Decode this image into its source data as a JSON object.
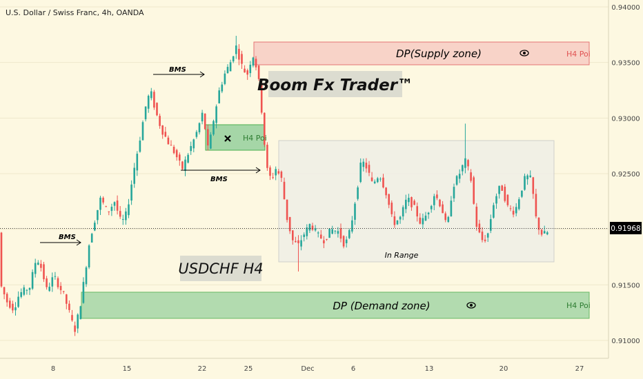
{
  "header": {
    "symbol_title": "U.S. Dollar / Swiss Franc, 4h, OANDA"
  },
  "colors": {
    "background": "#fdf8e1",
    "up_candle": "#26a69a",
    "down_candle": "#ef5350",
    "supply_fill": "#f8d3c8",
    "supply_border": "#e57373",
    "demand_fill": "#a5d6a7",
    "demand_border": "#4caf50",
    "range_fill": "#efefe6",
    "range_border": "#c8c8c8",
    "axis_text": "#444444",
    "price_tag": "#000000"
  },
  "chart_data": {
    "type": "candlestick",
    "y_axis": {
      "range": [
        0.90839,
        0.94062
      ],
      "ticks": [
        "0.94000",
        "0.93500",
        "0.93000",
        "0.92500",
        "0.92000",
        "0.91500",
        "0.91000"
      ]
    },
    "x_axis": {
      "ticks": [
        "8",
        "15",
        "22",
        "25",
        "Dec",
        "6",
        "13",
        "20",
        "27"
      ]
    },
    "current_price": "0.91968",
    "annotations": {
      "supply_zone": {
        "label": "DP(Supply zone)",
        "tag": "H4 Poi",
        "price_top": 0.93625,
        "price_bottom": 0.93435
      },
      "demand_zone": {
        "label": "DP (Demand zone)",
        "tag": "H4 Poi",
        "price_top": 0.91385,
        "price_bottom": 0.91175
      },
      "mid_poi": {
        "tag": "H4 Poi",
        "price_top": 0.92935,
        "price_bottom": 0.92665
      },
      "range_box": {
        "label": "In Range",
        "price_top": 0.92745,
        "price_bottom": 0.91685
      },
      "bms_labels": [
        "BMS",
        "BMS",
        "BMS"
      ],
      "brand": "Boom Fx Trader™",
      "title": "USDCHF H4"
    },
    "series_path": [
      [
        0,
        0.9155
      ],
      [
        12,
        0.9135
      ],
      [
        22,
        0.9128
      ],
      [
        30,
        0.9142
      ],
      [
        45,
        0.9148
      ],
      [
        55,
        0.9175
      ],
      [
        62,
        0.9165
      ],
      [
        70,
        0.9145
      ],
      [
        80,
        0.9158
      ],
      [
        95,
        0.914
      ],
      [
        105,
        0.912
      ],
      [
        110,
        0.9108
      ],
      [
        118,
        0.913
      ],
      [
        124,
        0.9155
      ],
      [
        132,
        0.919
      ],
      [
        140,
        0.921
      ],
      [
        148,
        0.9228
      ],
      [
        158,
        0.9215
      ],
      [
        168,
        0.9225
      ],
      [
        178,
        0.9205
      ],
      [
        186,
        0.9215
      ],
      [
        195,
        0.925
      ],
      [
        205,
        0.9282
      ],
      [
        213,
        0.931
      ],
      [
        220,
        0.9325
      ],
      [
        228,
        0.9305
      ],
      [
        236,
        0.929
      ],
      [
        246,
        0.9278
      ],
      [
        256,
        0.9268
      ],
      [
        266,
        0.9254
      ],
      [
        276,
        0.927
      ],
      [
        286,
        0.9285
      ],
      [
        296,
        0.9305
      ],
      [
        304,
        0.927
      ],
      [
        312,
        0.93
      ],
      [
        320,
        0.9325
      ],
      [
        328,
        0.934
      ],
      [
        336,
        0.935
      ],
      [
        344,
        0.9365
      ],
      [
        352,
        0.9348
      ],
      [
        360,
        0.9338
      ],
      [
        368,
        0.9358
      ],
      [
        374,
        0.9345
      ],
      [
        379,
        0.9325
      ],
      [
        384,
        0.9285
      ],
      [
        390,
        0.925
      ],
      [
        396,
        0.9245
      ],
      [
        402,
        0.9255
      ],
      [
        410,
        0.9245
      ],
      [
        418,
        0.921
      ],
      [
        426,
        0.919
      ],
      [
        434,
        0.9185
      ],
      [
        442,
        0.9195
      ],
      [
        452,
        0.9205
      ],
      [
        462,
        0.9195
      ],
      [
        472,
        0.919
      ],
      [
        482,
        0.92
      ],
      [
        492,
        0.9198
      ],
      [
        502,
        0.9185
      ],
      [
        510,
        0.92
      ],
      [
        518,
        0.923
      ],
      [
        526,
        0.9262
      ],
      [
        534,
        0.9255
      ],
      [
        542,
        0.924
      ],
      [
        552,
        0.925
      ],
      [
        562,
        0.9232
      ],
      [
        572,
        0.9205
      ],
      [
        582,
        0.921
      ],
      [
        592,
        0.9228
      ],
      [
        602,
        0.922
      ],
      [
        612,
        0.9205
      ],
      [
        622,
        0.9215
      ],
      [
        632,
        0.9232
      ],
      [
        642,
        0.922
      ],
      [
        650,
        0.92
      ],
      [
        658,
        0.9238
      ],
      [
        668,
        0.925
      ],
      [
        676,
        0.9262
      ],
      [
        684,
        0.9248
      ],
      [
        692,
        0.9205
      ],
      [
        700,
        0.919
      ],
      [
        708,
        0.9192
      ],
      [
        718,
        0.9225
      ],
      [
        728,
        0.924
      ],
      [
        738,
        0.922
      ],
      [
        748,
        0.9215
      ],
      [
        756,
        0.9232
      ],
      [
        764,
        0.9248
      ],
      [
        772,
        0.9245
      ],
      [
        780,
        0.9205
      ],
      [
        788,
        0.9195
      ],
      [
        795,
        0.9197
      ]
    ]
  }
}
